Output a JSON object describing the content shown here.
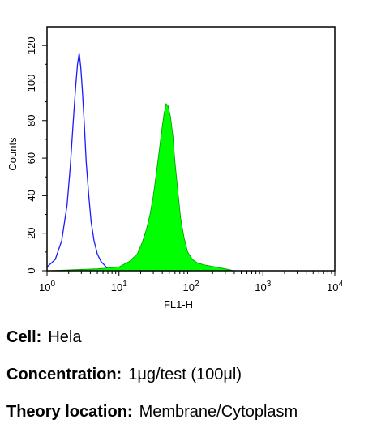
{
  "chart_data": {
    "type": "area",
    "title": "",
    "xlabel": "FL1-H",
    "ylabel": "Counts",
    "xscale": "log",
    "xlim": [
      1,
      10000
    ],
    "ylim": [
      0,
      130
    ],
    "xticks": [
      {
        "base": "10",
        "exp": "0"
      },
      {
        "base": "10",
        "exp": "1"
      },
      {
        "base": "10",
        "exp": "2"
      },
      {
        "base": "10",
        "exp": "3"
      },
      {
        "base": "10",
        "exp": "4"
      }
    ],
    "yticks": [
      0,
      20,
      40,
      60,
      80,
      100,
      120
    ],
    "grid": false,
    "legend": "none",
    "series": [
      {
        "style": "outline",
        "color": "#1a1aff",
        "x": [
          1.0,
          1.3,
          1.6,
          1.9,
          2.1,
          2.3,
          2.5,
          2.65,
          2.8,
          2.95,
          3.1,
          3.3,
          3.5,
          3.8,
          4.1,
          4.5,
          5.0,
          5.6,
          6.3,
          7.0,
          8.0,
          9.0,
          10.0,
          12.0,
          15.0,
          20.0,
          100.0
        ],
        "y": [
          2,
          6,
          16,
          35,
          55,
          78,
          98,
          110,
          116,
          108,
          96,
          78,
          58,
          40,
          26,
          16,
          9,
          5,
          3,
          1,
          1,
          0,
          1,
          0,
          1,
          0,
          0
        ]
      },
      {
        "style": "filled",
        "color": "#00ff00",
        "x": [
          1.0,
          5.0,
          10.0,
          14.0,
          18.0,
          21.0,
          24.0,
          27.0,
          30.0,
          33.0,
          36.0,
          39.0,
          42.0,
          45.0,
          48.0,
          52.0,
          56.0,
          60.0,
          66.0,
          72.0,
          80.0,
          90.0,
          105.0,
          125.0,
          160.0,
          220.0,
          300.0,
          400.0,
          10000.0
        ],
        "y": [
          0,
          1,
          2,
          5,
          9,
          15,
          22,
          30,
          40,
          52,
          63,
          74,
          83,
          89,
          88,
          82,
          72,
          58,
          42,
          28,
          18,
          10,
          6,
          4,
          3,
          2,
          1,
          0,
          0
        ]
      }
    ]
  },
  "captions": [
    {
      "label": "Cell:",
      "value": "Hela"
    },
    {
      "label": "Concentration:",
      "value": "1μg/test (100μl)"
    },
    {
      "label": "Theory location:",
      "value": "Membrane/Cytoplasm"
    }
  ]
}
